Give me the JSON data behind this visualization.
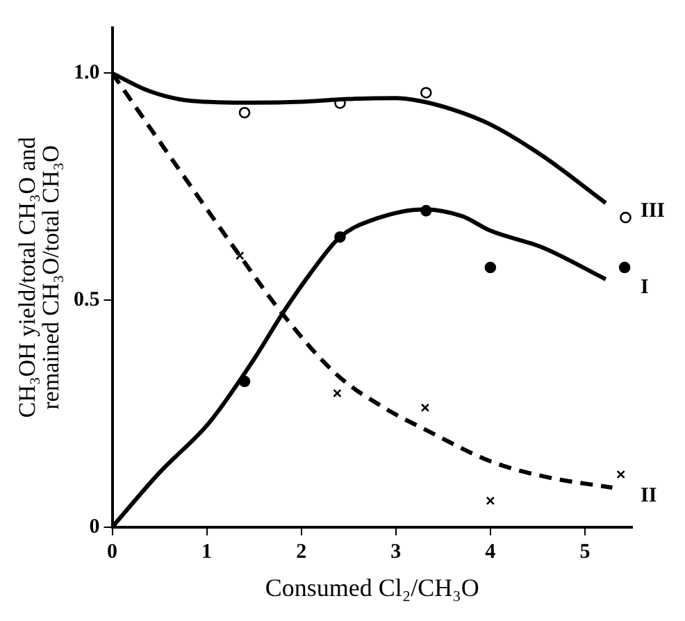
{
  "chart_data": {
    "type": "line",
    "xlabel": "Consumed Cl₂/CH₃O",
    "ylabel": "CH₃OH yield/total CH₃O and\nremained CH₃O/total CH₃O",
    "xlim": [
      0,
      5.5
    ],
    "ylim": [
      0,
      1.1
    ],
    "xticks": [
      0,
      1,
      2,
      3,
      4,
      5
    ],
    "yticks": [
      0,
      {
        "value": 0.5,
        "label": "0.5"
      },
      {
        "value": 1,
        "label": "1.0"
      }
    ],
    "grid": false,
    "legend": false,
    "series": [
      {
        "type": "line",
        "name": "I",
        "color": "#000000",
        "line_style": "solid",
        "marker": "none",
        "x": [
          0,
          0.5,
          1.03,
          1.5,
          1.8,
          2.1,
          2.41,
          2.8,
          3.3,
          3.7,
          4.0,
          4.55,
          5.22
        ],
        "values": [
          0,
          0.12,
          0.231,
          0.37,
          0.47,
          0.56,
          0.639,
          0.68,
          0.7,
          0.685,
          0.653,
          0.616,
          0.546
        ]
      },
      {
        "type": "line",
        "name": "II",
        "color": "#000000",
        "line_style": "dashed",
        "marker": "none",
        "x": [
          0,
          0.7,
          1.35,
          1.8,
          2.38,
          2.9,
          3.31,
          4.0,
          4.6,
          5.29
        ],
        "values": [
          1,
          0.79,
          0.598,
          0.47,
          0.335,
          0.26,
          0.215,
          0.145,
          0.11,
          0.087
        ]
      },
      {
        "type": "line",
        "name": "III",
        "color": "#000000",
        "line_style": "solid",
        "marker": "none",
        "x": [
          0,
          0.4,
          0.84,
          1.5,
          2.0,
          2.5,
          3.0,
          3.25,
          3.6,
          4.0,
          4.55,
          5.22
        ],
        "values": [
          1,
          0.96,
          0.939,
          0.935,
          0.937,
          0.943,
          0.945,
          0.939,
          0.92,
          0.887,
          0.818,
          0.714
        ]
      },
      {
        "type": "scatter",
        "color": "#000000",
        "marker": "circle",
        "x": [
          1.4,
          2.41,
          3.32,
          4.0,
          5.42
        ],
        "values": [
          0.321,
          0.639,
          0.697,
          0.572,
          0.572
        ]
      },
      {
        "type": "scatter",
        "color": "#000000",
        "marker": "cross",
        "x": [
          1.35,
          2.38,
          3.31,
          4.0,
          5.38
        ],
        "values": [
          0.598,
          0.295,
          0.263,
          0.058,
          0.116
        ]
      },
      {
        "type": "scatter",
        "color": "#ffffff",
        "marker": "circle",
        "x": [
          1.4,
          2.41,
          3.32,
          5.43
        ],
        "values": [
          0.913,
          0.934,
          0.957,
          0.682
        ]
      }
    ]
  }
}
